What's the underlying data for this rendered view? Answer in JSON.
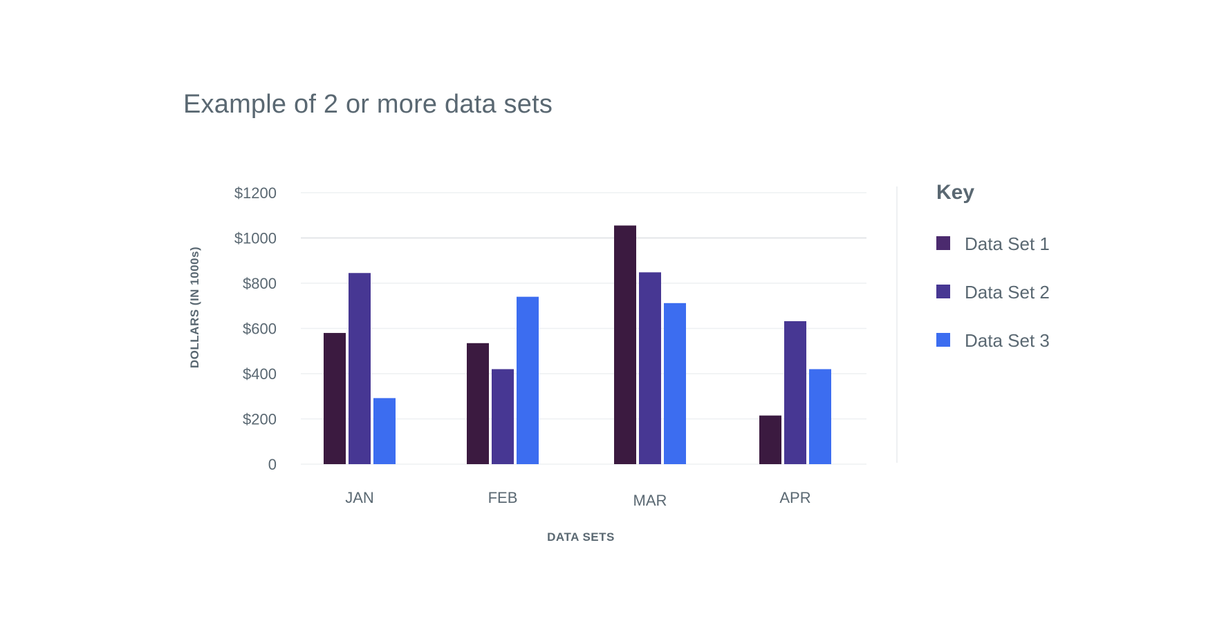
{
  "chart_data": {
    "type": "bar",
    "title": "Example of 2 or more data sets",
    "xlabel": "DATA SETS",
    "ylabel": "DOLLARS (IN 1000s)",
    "categories": [
      "JAN",
      "FEB",
      "MAR",
      "APR"
    ],
    "yticks": [
      0,
      200,
      400,
      600,
      800,
      1000,
      1200
    ],
    "ytick_labels": [
      "0",
      "$200",
      "$400",
      "$600",
      "$800",
      "$1000",
      "$1200"
    ],
    "ylim": [
      0,
      1200
    ],
    "grid": true,
    "legend": {
      "title": "Key",
      "position": "right"
    },
    "series": [
      {
        "name": "Data Set 1",
        "color": "#3b1a40",
        "legend_color": "#4b2a6e",
        "values": [
          580,
          535,
          1055,
          215
        ]
      },
      {
        "name": "Data Set 2",
        "color": "#473793",
        "values": [
          845,
          420,
          848,
          632
        ]
      },
      {
        "name": "Data Set 3",
        "color": "#3c6df0",
        "values": [
          292,
          740,
          712,
          420
        ]
      }
    ]
  }
}
